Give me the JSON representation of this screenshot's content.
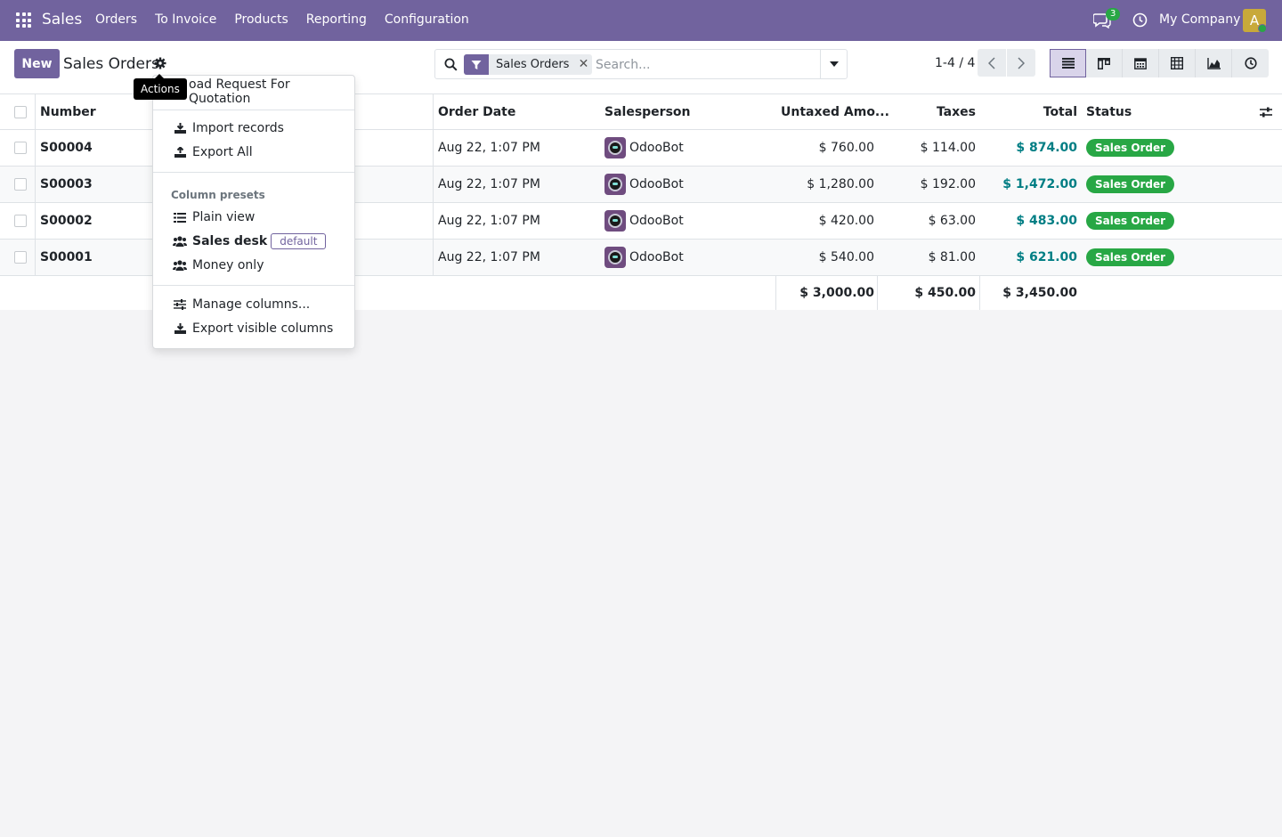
{
  "navbar": {
    "brand": "Sales",
    "menu": [
      "Orders",
      "To Invoice",
      "Products",
      "Reporting",
      "Configuration"
    ],
    "chat_count": "3",
    "company": "My Company",
    "avatar_letter": "A",
    "accent": "#71639e"
  },
  "control": {
    "new_label": "New",
    "title": "Sales Orders",
    "tooltip": "Actions",
    "facet": "Sales Orders",
    "search_placeholder": "Search...",
    "pager": "1-4 / 4",
    "views": [
      "list-icon",
      "kanban-icon",
      "calendar-icon",
      "pivot-icon",
      "graph-icon",
      "activity-icon"
    ]
  },
  "dropdown": {
    "first_item": "oad Request For Quotation",
    "import": "Import records",
    "export_all": "Export All",
    "section": "Column presets",
    "plain": "Plain view",
    "sales_desk": "Sales desk",
    "default_badge": "default",
    "money": "Money only",
    "manage": "Manage columns...",
    "export_visible": "Export visible columns"
  },
  "table": {
    "headers": {
      "number": "Number",
      "order_date": "Order Date",
      "salesperson": "Salesperson",
      "untaxed": "Untaxed Amo...",
      "taxes": "Taxes",
      "total": "Total",
      "status": "Status"
    },
    "rows": [
      {
        "number": "S00004",
        "date": "Aug 22, 1:07 PM",
        "salesperson": "OdooBot",
        "untaxed": "$ 760.00",
        "taxes": "$ 114.00",
        "total": "$ 874.00",
        "status": "Sales Order"
      },
      {
        "number": "S00003",
        "date": "Aug 22, 1:07 PM",
        "salesperson": "OdooBot",
        "untaxed": "$ 1,280.00",
        "taxes": "$ 192.00",
        "total": "$ 1,472.00",
        "status": "Sales Order"
      },
      {
        "number": "S00002",
        "date": "Aug 22, 1:07 PM",
        "salesperson": "OdooBot",
        "untaxed": "$ 420.00",
        "taxes": "$ 63.00",
        "total": "$ 483.00",
        "status": "Sales Order"
      },
      {
        "number": "S00001",
        "date": "Aug 22, 1:07 PM",
        "salesperson": "OdooBot",
        "untaxed": "$ 540.00",
        "taxes": "$ 81.00",
        "total": "$ 621.00",
        "status": "Sales Order"
      }
    ],
    "totals": {
      "untaxed": "$ 3,000.00",
      "taxes": "$ 450.00",
      "total": "$ 3,450.00"
    }
  }
}
